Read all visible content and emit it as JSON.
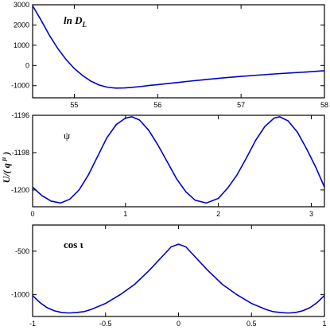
{
  "chart_data": [
    {
      "type": "line",
      "panel_label": "ln D",
      "panel_label_sub": "L",
      "xlim": [
        54.5,
        58.0
      ],
      "ylim": [
        -1600,
        3000
      ],
      "xticks": [
        55,
        56,
        57,
        58
      ],
      "yticks": [
        3000,
        2000,
        1000,
        0,
        -1000
      ],
      "tick_labels_x": [
        "55",
        "56",
        "57",
        "58"
      ],
      "tick_labels_y": [
        "3000",
        "2000",
        "1000",
        "0",
        "-1000"
      ],
      "series": [
        {
          "color": "#0000cc",
          "x": [
            54.5,
            54.6,
            54.7,
            54.8,
            54.9,
            55.0,
            55.1,
            55.2,
            55.3,
            55.4,
            55.5,
            55.6,
            55.7,
            55.8,
            55.9,
            56.0,
            56.2,
            56.4,
            56.6,
            56.8,
            57.0,
            57.2,
            57.4,
            57.6,
            57.8,
            58.0
          ],
          "y": [
            2950,
            2250,
            1500,
            850,
            300,
            -150,
            -500,
            -780,
            -970,
            -1080,
            -1120,
            -1110,
            -1080,
            -1040,
            -990,
            -950,
            -860,
            -770,
            -690,
            -610,
            -540,
            -480,
            -420,
            -370,
            -320,
            -260
          ]
        }
      ]
    },
    {
      "type": "line",
      "panel_label": "ψ",
      "ylabel_main": "U/( q",
      "ylabel_sup": "μ",
      "ylabel_end": ")",
      "xlim": [
        0,
        3.14159
      ],
      "ylim": [
        -1200.9,
        -1196.0
      ],
      "xticks": [
        0,
        1,
        2,
        3
      ],
      "yticks": [
        -1196,
        -1198,
        -1200
      ],
      "tick_labels_x": [
        "0",
        "1",
        "2",
        "3"
      ],
      "tick_labels_y": [
        "-1196",
        "-1198",
        "-1200"
      ],
      "series": [
        {
          "color": "#0000cc",
          "x": [
            0,
            0.1,
            0.2,
            0.3,
            0.4,
            0.5,
            0.6,
            0.7,
            0.8,
            0.9,
            1.0,
            1.07,
            1.15,
            1.25,
            1.35,
            1.45,
            1.55,
            1.65,
            1.75,
            1.87,
            2.0,
            2.1,
            2.2,
            2.3,
            2.4,
            2.5,
            2.6,
            2.66,
            2.75,
            2.85,
            2.95,
            3.05,
            3.14159
          ],
          "y": [
            -1199.85,
            -1200.3,
            -1200.6,
            -1200.7,
            -1200.5,
            -1200.0,
            -1199.2,
            -1198.2,
            -1197.2,
            -1196.5,
            -1196.15,
            -1196.08,
            -1196.25,
            -1196.8,
            -1197.6,
            -1198.5,
            -1199.4,
            -1200.1,
            -1200.55,
            -1200.7,
            -1200.45,
            -1199.9,
            -1199.2,
            -1198.3,
            -1197.35,
            -1196.6,
            -1196.15,
            -1196.08,
            -1196.3,
            -1196.9,
            -1197.8,
            -1198.8,
            -1199.85
          ]
        }
      ]
    },
    {
      "type": "line",
      "panel_label": "cos ι",
      "xlim": [
        -1,
        1
      ],
      "ylim": [
        -1250,
        -200
      ],
      "xticks": [
        -1,
        -0.5,
        0,
        0.5,
        1
      ],
      "yticks": [
        -500,
        -1000
      ],
      "tick_labels_x": [
        "-1",
        "-0.5",
        "0",
        "0.5",
        "1"
      ],
      "tick_labels_y": [
        "-500",
        "-1000"
      ],
      "series": [
        {
          "color": "#0000cc",
          "x": [
            -1.0,
            -0.95,
            -0.9,
            -0.85,
            -0.8,
            -0.75,
            -0.7,
            -0.65,
            -0.6,
            -0.5,
            -0.4,
            -0.3,
            -0.2,
            -0.1,
            -0.05,
            0.0,
            0.05,
            0.1,
            0.2,
            0.3,
            0.4,
            0.5,
            0.6,
            0.65,
            0.7,
            0.75,
            0.8,
            0.85,
            0.9,
            0.95,
            1.0
          ],
          "y": [
            -1010,
            -1090,
            -1150,
            -1185,
            -1205,
            -1210,
            -1205,
            -1195,
            -1170,
            -1100,
            -1000,
            -880,
            -720,
            -540,
            -450,
            -420,
            -450,
            -540,
            -720,
            -880,
            -1000,
            -1100,
            -1170,
            -1195,
            -1205,
            -1210,
            -1205,
            -1185,
            -1150,
            -1090,
            -1010
          ]
        }
      ]
    }
  ]
}
